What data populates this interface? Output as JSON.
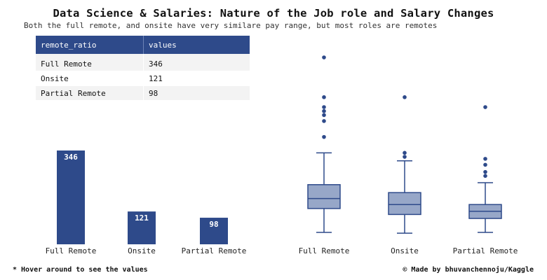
{
  "header": {
    "title": "Data Science & Salaries: Nature of the Job role and Salary Changes",
    "subtitle": "Both the full remote, and onsite have very similare pay range, but most roles are remotes"
  },
  "table": {
    "columns": [
      "remote_ratio",
      "values"
    ],
    "rows": [
      {
        "remote_ratio": "Full Remote",
        "values": "346"
      },
      {
        "remote_ratio": "Onsite",
        "values": "121"
      },
      {
        "remote_ratio": "Partial Remote",
        "values": "98"
      }
    ]
  },
  "footer": {
    "note": "* Hover around to see the values",
    "credit": "© Made by bhuvanchennoju/Kaggle"
  },
  "colors": {
    "bar": "#2e4a8a",
    "box_fill": "#97a7c8",
    "box_stroke": "#2e4a8a"
  },
  "chart_data": [
    {
      "type": "bar",
      "categories": [
        "Full Remote",
        "Onsite",
        "Partial Remote"
      ],
      "values": [
        346,
        121,
        98
      ],
      "data_labels": [
        "346",
        "121",
        "98"
      ],
      "ylim": [
        0,
        346
      ],
      "grid": false
    },
    {
      "type": "box",
      "categories": [
        "Full Remote",
        "Onsite",
        "Partial Remote"
      ],
      "boxes": [
        {
          "whisker_low": 0.3,
          "q1": 0.9,
          "median": 1.15,
          "q3": 1.5,
          "whisker_high": 2.3,
          "outliers": [
            2.7,
            3.1,
            3.25,
            3.35,
            3.45,
            3.7,
            4.7
          ]
        },
        {
          "whisker_low": 0.28,
          "q1": 0.75,
          "median": 1.0,
          "q3": 1.3,
          "whisker_high": 2.1,
          "outliers": [
            2.2,
            2.3,
            3.7
          ]
        },
        {
          "whisker_low": 0.3,
          "q1": 0.65,
          "median": 0.83,
          "q3": 1.0,
          "whisker_high": 1.55,
          "outliers": [
            1.72,
            1.82,
            2.0,
            2.15,
            3.45
          ]
        }
      ],
      "ylim": [
        0,
        5
      ],
      "grid": false
    }
  ]
}
